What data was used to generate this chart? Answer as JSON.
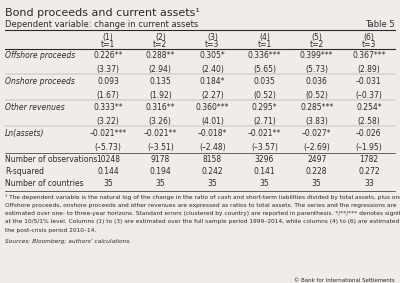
{
  "title": "Bond proceeds and current assets¹",
  "subtitle": "Dependent variable: change in current assets",
  "table_label": "Table 5",
  "col_headers_line1": [
    "(1)",
    "(2)",
    "(3)",
    "(4)",
    "(5)",
    "(6)"
  ],
  "col_headers_line2": [
    "t=1",
    "t=2",
    "t=3",
    "t=1",
    "t=2",
    "t=3"
  ],
  "row_groups": [
    {
      "label": "Offshore proceeds",
      "values": [
        "0.226**",
        "0.288**",
        "0.305*",
        "0.336***",
        "0.399***",
        "0.367***"
      ],
      "tvals": [
        "(3.37)",
        "(2.94)",
        "(2.40)",
        "(5.65)",
        "(5.73)",
        "(2.89)"
      ]
    },
    {
      "label": "Onshore proceeds",
      "values": [
        "0.093",
        "0.135",
        "0.184*",
        "0.035",
        "0.036",
        "–0.031"
      ],
      "tvals": [
        "(1.67)",
        "(1.92)",
        "(2.27)",
        "(0.52)",
        "(0.52)",
        "(–0.37)"
      ]
    },
    {
      "label": "Other revenues",
      "values": [
        "0.333**",
        "0.316**",
        "0.360***",
        "0.295*",
        "0.285***",
        "0.254*"
      ],
      "tvals": [
        "(3.22)",
        "(3.26)",
        "(4.01)",
        "(2.71)",
        "(3.83)",
        "(2.58)"
      ]
    },
    {
      "label": "Ln(assets)",
      "values": [
        "–0.021***",
        "–0.021**",
        "–0.018*",
        "–0.021**",
        "–0.027*",
        "–0.026"
      ],
      "tvals": [
        "(–5.73)",
        "(–3.51)",
        "(–2.48)",
        "(–3.57)",
        "(–2.69)",
        "(–1.95)"
      ]
    }
  ],
  "summary_rows": [
    {
      "label": "Number of observations",
      "values": [
        "10248",
        "9178",
        "8158",
        "3296",
        "2497",
        "1782"
      ]
    },
    {
      "label": "R-squared",
      "values": [
        "0.144",
        "0.194",
        "0.242",
        "0.141",
        "0.228",
        "0.272"
      ]
    },
    {
      "label": "Number of countries",
      "values": [
        "35",
        "35",
        "35",
        "35",
        "35",
        "33"
      ]
    }
  ],
  "footnote_lines": [
    "¹ The dependent variable is the natural log of the change in the ratio of cash and short-term liabilities divided by total assets, plus one.",
    "Offshore proceeds, onshore proceeds and other revenues are expressed as ratios to total assets. The series and the regressions are",
    "estimated over one- to three-year horizons. Standard errors (clustered by country) are reported in parenthesis. */**/*** denotes significance",
    "at the 10/5/1% level. Columns (1) to (3) are estimated over the full sample period 1999–2014, while columns (4) to (6) are estimated over",
    "the post-crisis period 2010–14."
  ],
  "sources": "Sources: Bloomberg; authors’ calculations.",
  "copyright": "© Bank for International Settlements",
  "bg_color": "#f0ede8",
  "text_color": "#2a2a2a",
  "line_color": "#888888"
}
